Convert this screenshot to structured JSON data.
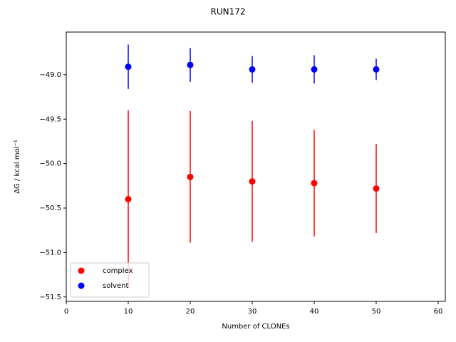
{
  "chart_data": {
    "type": "errorbar-scatter",
    "title": "RUN172",
    "x_label": "Number of CLONEs",
    "y_label": "ΔG / kcal mol⁻¹",
    "x": [
      10,
      20,
      30,
      40,
      50
    ],
    "series": [
      {
        "name": "complex",
        "color": "#ff0000",
        "values": [
          -50.4,
          -50.15,
          -50.2,
          -50.22,
          -50.28
        ],
        "errors": [
          1.0,
          0.74,
          0.68,
          0.6,
          0.5
        ]
      },
      {
        "name": "solvent",
        "color": "#0000ff",
        "values": [
          -48.91,
          -48.89,
          -48.94,
          -48.94,
          -48.94
        ],
        "errors": [
          0.25,
          0.19,
          0.15,
          0.16,
          0.12
        ]
      }
    ],
    "xlim": [
      0,
      61.15
    ],
    "xticks": [
      0,
      10,
      20,
      30,
      40,
      50,
      60
    ],
    "ylim": [
      -51.55,
      -48.52
    ],
    "yticks": [
      {
        "value": -51.5,
        "label": "−51.5"
      },
      {
        "value": -51.0,
        "label": "−51.0"
      },
      {
        "value": -50.5,
        "label": "−50.5"
      },
      {
        "value": -50.0,
        "label": "−50.0"
      },
      {
        "value": -49.5,
        "label": "−49.5"
      },
      {
        "value": -49.0,
        "label": "−49.0"
      }
    ],
    "legend": "lower left"
  }
}
